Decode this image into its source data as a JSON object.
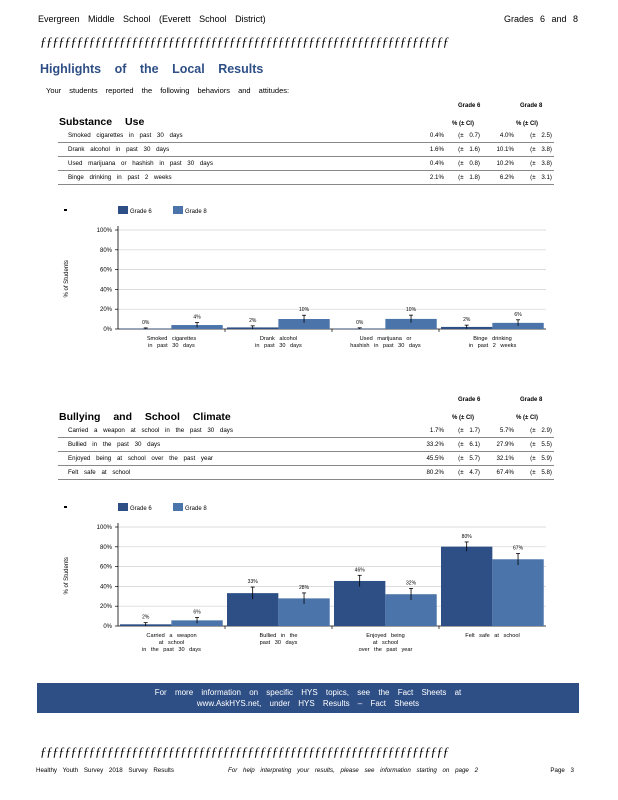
{
  "header": {
    "school": "Evergreen Middle School (Everett School District)",
    "grades": "Grades 6 and 8"
  },
  "deco_line": "ƒƒƒƒƒƒƒƒƒƒƒƒƒƒƒƒƒƒƒƒƒƒƒƒƒƒƒƒƒƒƒƒƒƒƒƒƒƒƒƒƒƒƒƒƒƒƒƒƒƒƒƒƒƒƒƒƒƒƒƒƒƒƒƒƒƒƒƒƒ",
  "section_title": "Highlights of the Local Results",
  "intro": "Your students reported the following behaviors and attitudes:",
  "table1": {
    "title": "Substance Use",
    "grade6": "Grade 6",
    "grade8": "Grade 8",
    "ci_head": "% (± CI)",
    "rows": [
      {
        "item": "Smoked cigarettes in past 30 days",
        "g6": "0.4%",
        "g6ci": "(± 0.7)",
        "g8": "4.0%",
        "g8ci": "(± 2.5)"
      },
      {
        "item": "Drank alcohol in past 30 days",
        "g6": "1.6%",
        "g6ci": "(± 1.6)",
        "g8": "10.1%",
        "g8ci": "(± 3.8)"
      },
      {
        "item": "Used marijuana or hashish in past 30 days",
        "g6": "0.4%",
        "g6ci": "(± 0.8)",
        "g8": "10.2%",
        "g8ci": "(± 3.8)"
      },
      {
        "item": "Binge drinking in past 2 weeks",
        "g6": "2.1%",
        "g6ci": "(± 1.8)",
        "g8": "6.2%",
        "g8ci": "(± 3.1)"
      }
    ]
  },
  "table2": {
    "title": "Bullying and School Climate",
    "grade6": "Grade 6",
    "grade8": "Grade 8",
    "ci_head": "% (± CI)",
    "rows": [
      {
        "item": "Carried a weapon at school in the past 30 days",
        "g6": "1.7%",
        "g6ci": "(± 1.7)",
        "g8": "5.7%",
        "g8ci": "(± 2.9)"
      },
      {
        "item": "Bullied in the past 30 days",
        "g6": "33.2%",
        "g6ci": "(± 6.1)",
        "g8": "27.9%",
        "g8ci": "(± 5.5)"
      },
      {
        "item": "Enjoyed being at school over the past year",
        "g6": "45.5%",
        "g6ci": "(± 5.7)",
        "g8": "32.1%",
        "g8ci": "(± 5.9)"
      },
      {
        "item": "Felt safe at school",
        "g6": "80.2%",
        "g6ci": "(± 4.7)",
        "g8": "67.4%",
        "g8ci": "(± 5.8)"
      }
    ]
  },
  "banner": {
    "line1": "For more information on specific HYS topics, see the Fact Sheets at",
    "line2": "www.AskHYS.net, under HYS Results – Fact Sheets"
  },
  "footer": {
    "left": "Healthy Youth Survey 2018 Survey Results",
    "mid": "For help interpreting your results, please see information starting on page 2",
    "right": "Page 3"
  },
  "colors": {
    "grade6": "#2e4f86",
    "grade8": "#4a74aa",
    "banner": "#2e4f86",
    "title": "#2e4f86"
  },
  "chart_data": [
    {
      "type": "bar",
      "ylabel": "% of Students",
      "ylim": [
        0,
        100
      ],
      "yticks": [
        "0%",
        "20%",
        "40%",
        "60%",
        "80%",
        "100%"
      ],
      "legend": "top-left",
      "categories": [
        [
          "Smoked cigarettes",
          "in past 30 days"
        ],
        [
          "Drank alcohol",
          "in past 30 days"
        ],
        [
          "Used marijuana or",
          "hashish in past 30 days"
        ],
        [
          "Binge drinking",
          "in past 2 weeks"
        ]
      ],
      "series": [
        {
          "name": "Grade 6",
          "values": [
            0.4,
            1.6,
            0.4,
            2.1
          ],
          "ci": [
            0.7,
            1.6,
            0.8,
            1.8
          ],
          "labels": [
            "0%",
            "2%",
            "0%",
            "2%"
          ]
        },
        {
          "name": "Grade 8",
          "values": [
            4.0,
            10.1,
            10.2,
            6.2
          ],
          "ci": [
            2.5,
            3.8,
            3.8,
            3.1
          ],
          "labels": [
            "4%",
            "10%",
            "10%",
            "6%"
          ]
        }
      ]
    },
    {
      "type": "bar",
      "ylabel": "% of Students",
      "ylim": [
        0,
        100
      ],
      "yticks": [
        "0%",
        "20%",
        "40%",
        "60%",
        "80%",
        "100%"
      ],
      "legend": "top-left",
      "categories": [
        [
          "Carried a weapon",
          "at school",
          "in the past 30 days"
        ],
        [
          "Bullied in the",
          "past 30 days"
        ],
        [
          "Enjoyed being",
          "at school",
          "over the past year"
        ],
        [
          "Felt safe at school"
        ]
      ],
      "series": [
        {
          "name": "Grade 6",
          "values": [
            1.7,
            33.2,
            45.5,
            80.2
          ],
          "ci": [
            1.7,
            6.1,
            5.7,
            4.7
          ],
          "labels": [
            "2%",
            "33%",
            "46%",
            "80%"
          ]
        },
        {
          "name": "Grade 8",
          "values": [
            5.7,
            27.9,
            32.1,
            67.4
          ],
          "ci": [
            2.9,
            5.5,
            5.9,
            5.8
          ],
          "labels": [
            "6%",
            "28%",
            "32%",
            "67%"
          ]
        }
      ]
    }
  ]
}
